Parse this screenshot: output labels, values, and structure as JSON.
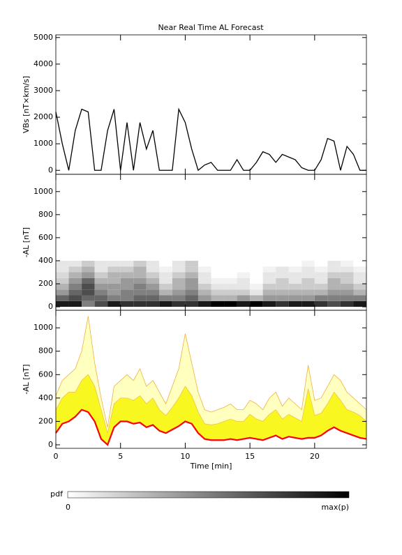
{
  "title": "Near Real Time AL Forecast",
  "chart_data": [
    {
      "type": "line",
      "ylabel": "VBs [nT×km/s]",
      "color": "#000000",
      "xlim": [
        0,
        24
      ],
      "ylim": [
        -150,
        5100
      ],
      "yticks": [
        0,
        1000,
        2000,
        3000,
        4000,
        5000
      ],
      "x": [
        0,
        0.5,
        1,
        1.5,
        2,
        2.5,
        3,
        3.5,
        4,
        4.5,
        5,
        5.5,
        6,
        6.5,
        7,
        7.5,
        8,
        8.5,
        9,
        9.5,
        10,
        10.5,
        11,
        11.5,
        12,
        12.5,
        13,
        13.5,
        14,
        14.5,
        15,
        15.5,
        16,
        16.5,
        17,
        17.5,
        18,
        18.5,
        19,
        19.5,
        20,
        20.5,
        21,
        21.5,
        22,
        22.5,
        23,
        23.5,
        24
      ],
      "values": [
        2200,
        1000,
        0,
        1500,
        2300,
        2200,
        0,
        0,
        1500,
        2300,
        0,
        1800,
        0,
        1800,
        800,
        1500,
        0,
        0,
        0,
        2300,
        1800,
        800,
        0,
        200,
        300,
        0,
        0,
        0,
        400,
        0,
        0,
        300,
        700,
        600,
        300,
        600,
        500,
        400,
        100,
        0,
        0,
        400,
        1200,
        1100,
        0,
        900,
        600,
        0,
        0
      ]
    },
    {
      "type": "heatmap",
      "ylabel": "-AL [nT]",
      "cmap": [
        "#ffffff",
        "#000000"
      ],
      "xlim": [
        0,
        24
      ],
      "ylim": [
        -30,
        1150
      ],
      "yticks": [
        0,
        200,
        400,
        600,
        800,
        1000
      ],
      "x_bins": [
        0,
        1,
        2,
        3,
        4,
        5,
        6,
        7,
        8,
        9,
        10,
        11,
        12,
        13,
        14,
        15,
        16,
        17,
        18,
        19,
        20,
        21,
        22,
        23,
        24
      ],
      "y_bins": [
        0,
        50,
        100,
        150,
        200,
        250,
        300,
        350,
        400
      ],
      "z": [
        [
          0.9,
          0.6,
          0.4,
          0.3,
          0.2,
          0.15,
          0.1,
          0.1
        ],
        [
          0.9,
          0.7,
          0.6,
          0.5,
          0.4,
          0.3,
          0.2,
          0.1
        ],
        [
          0.5,
          0.6,
          0.7,
          0.7,
          0.6,
          0.4,
          0.3,
          0.2
        ],
        [
          0.7,
          0.6,
          0.5,
          0.4,
          0.3,
          0.2,
          0.1,
          0.1
        ],
        [
          0.9,
          0.5,
          0.4,
          0.4,
          0.3,
          0.3,
          0.2,
          0.1
        ],
        [
          0.8,
          0.5,
          0.5,
          0.4,
          0.4,
          0.3,
          0.2,
          0.1
        ],
        [
          0.8,
          0.6,
          0.5,
          0.5,
          0.4,
          0.3,
          0.3,
          0.2
        ],
        [
          0.8,
          0.6,
          0.5,
          0.4,
          0.3,
          0.2,
          0.1,
          0.1
        ],
        [
          0.9,
          0.5,
          0.3,
          0.2,
          0.1,
          0.1,
          0.05,
          0
        ],
        [
          0.8,
          0.5,
          0.4,
          0.3,
          0.3,
          0.2,
          0.1,
          0.1
        ],
        [
          0.8,
          0.6,
          0.5,
          0.4,
          0.4,
          0.3,
          0.2,
          0.2
        ],
        [
          0.9,
          0.4,
          0.3,
          0.2,
          0.1,
          0.1,
          0.05,
          0
        ],
        [
          1,
          0.3,
          0.2,
          0.1,
          0.05,
          0,
          0,
          0
        ],
        [
          1,
          0.3,
          0.2,
          0.1,
          0.05,
          0,
          0,
          0
        ],
        [
          0.9,
          0.4,
          0.2,
          0.1,
          0.1,
          0.05,
          0,
          0
        ],
        [
          1,
          0.3,
          0.1,
          0.05,
          0,
          0,
          0,
          0
        ],
        [
          0.9,
          0.4,
          0.3,
          0.2,
          0.1,
          0.1,
          0.05,
          0
        ],
        [
          0.8,
          0.4,
          0.3,
          0.2,
          0.2,
          0.1,
          0.1,
          0
        ],
        [
          0.9,
          0.4,
          0.3,
          0.2,
          0.1,
          0.1,
          0.05,
          0
        ],
        [
          0.9,
          0.4,
          0.3,
          0.2,
          0.2,
          0.1,
          0.1,
          0.05
        ],
        [
          0.8,
          0.5,
          0.3,
          0.2,
          0.1,
          0.1,
          0.05,
          0
        ],
        [
          0.7,
          0.5,
          0.4,
          0.3,
          0.3,
          0.2,
          0.1,
          0.1
        ],
        [
          0.8,
          0.5,
          0.4,
          0.3,
          0.2,
          0.2,
          0.1,
          0.05
        ],
        [
          0.9,
          0.5,
          0.3,
          0.2,
          0.1,
          0.1,
          0.05,
          0
        ]
      ],
      "colorbar": {
        "label": "pdf",
        "min_label": "0",
        "max_label": "max(p)"
      }
    },
    {
      "type": "band",
      "ylabel": "-AL [nT]",
      "xlabel": "Time [min]",
      "xlim": [
        0,
        24
      ],
      "ylim": [
        -30,
        1150
      ],
      "yticks": [
        0,
        200,
        400,
        600,
        800,
        1000
      ],
      "xticks": [
        0,
        5,
        10,
        15,
        20
      ],
      "x": [
        0,
        0.5,
        1,
        1.5,
        2,
        2.5,
        3,
        3.5,
        4,
        4.5,
        5,
        5.5,
        6,
        6.5,
        7,
        7.5,
        8,
        8.5,
        9,
        9.5,
        10,
        10.5,
        11,
        11.5,
        12,
        12.5,
        13,
        13.5,
        14,
        14.5,
        15,
        15.5,
        16,
        16.5,
        17,
        17.5,
        18,
        18.5,
        19,
        19.5,
        20,
        20.5,
        21,
        21.5,
        22,
        22.5,
        23,
        23.5,
        24
      ],
      "series": [
        {
          "color": "#ff0000",
          "fill": null,
          "values": [
            100,
            180,
            200,
            240,
            300,
            280,
            200,
            50,
            0,
            150,
            200,
            200,
            180,
            190,
            150,
            170,
            120,
            100,
            130,
            160,
            200,
            180,
            100,
            50,
            40,
            40,
            40,
            50,
            40,
            50,
            60,
            50,
            40,
            60,
            80,
            50,
            70,
            60,
            50,
            60,
            60,
            80,
            120,
            150,
            120,
            100,
            80,
            60,
            50
          ]
        },
        {
          "color": "#f0c050",
          "fill": "#f8f820",
          "values": [
            300,
            400,
            450,
            450,
            550,
            600,
            500,
            300,
            100,
            350,
            400,
            400,
            380,
            420,
            350,
            400,
            300,
            250,
            320,
            400,
            500,
            420,
            280,
            180,
            170,
            180,
            200,
            220,
            200,
            200,
            260,
            220,
            200,
            260,
            300,
            220,
            260,
            230,
            200,
            480,
            250,
            270,
            350,
            450,
            380,
            300,
            280,
            250,
            200
          ]
        },
        {
          "color": "#f0b040",
          "fill": "#ffffc0",
          "values": [
            420,
            550,
            600,
            650,
            800,
            1100,
            700,
            400,
            150,
            500,
            550,
            600,
            550,
            650,
            500,
            550,
            450,
            350,
            500,
            650,
            950,
            700,
            450,
            300,
            280,
            300,
            320,
            350,
            300,
            300,
            380,
            350,
            300,
            400,
            450,
            330,
            400,
            350,
            300,
            680,
            380,
            400,
            500,
            600,
            550,
            450,
            400,
            350,
            300
          ]
        }
      ]
    }
  ]
}
